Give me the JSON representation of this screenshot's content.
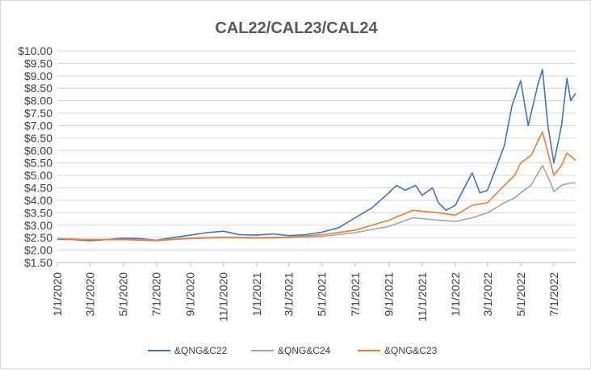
{
  "chart_data": {
    "type": "line",
    "title": "CAL22/CAL23/CAL24",
    "xlabel": "",
    "ylabel": "",
    "x_ticks": [
      "1/1/2020",
      "3/1/2020",
      "5/1/2020",
      "7/1/2020",
      "9/1/2020",
      "11/1/2020",
      "1/1/2021",
      "3/1/2021",
      "5/1/2021",
      "7/1/2021",
      "9/1/2021",
      "11/1/2021",
      "1/1/2022",
      "3/1/2022",
      "5/1/2022",
      "7/1/2022"
    ],
    "y_ticks": [
      "$1.50",
      "$2.00",
      "$2.50",
      "$3.00",
      "$3.50",
      "$4.00",
      "$4.50",
      "$5.00",
      "$5.50",
      "$6.00",
      "$6.50",
      "$7.00",
      "$7.50",
      "$8.00",
      "$8.50",
      "$9.00",
      "$9.50",
      "$10.00"
    ],
    "xlim": [
      "2020-01-01",
      "2022-08-10"
    ],
    "ylim": [
      1.5,
      10.0
    ],
    "grid": "horizontal",
    "legend": "bottom",
    "series": [
      {
        "name": "&QNG&C22",
        "color": "#4472c4",
        "points": [
          [
            "2020-01-01",
            2.43
          ],
          [
            "2020-02-01",
            2.42
          ],
          [
            "2020-03-01",
            2.38
          ],
          [
            "2020-04-01",
            2.42
          ],
          [
            "2020-05-01",
            2.48
          ],
          [
            "2020-06-01",
            2.46
          ],
          [
            "2020-07-01",
            2.4
          ],
          [
            "2020-08-01",
            2.5
          ],
          [
            "2020-09-01",
            2.6
          ],
          [
            "2020-10-01",
            2.7
          ],
          [
            "2020-11-01",
            2.76
          ],
          [
            "2020-12-01",
            2.62
          ],
          [
            "2021-01-01",
            2.6
          ],
          [
            "2021-02-01",
            2.65
          ],
          [
            "2021-03-01",
            2.58
          ],
          [
            "2021-04-01",
            2.62
          ],
          [
            "2021-05-01",
            2.72
          ],
          [
            "2021-06-01",
            2.9
          ],
          [
            "2021-07-01",
            3.3
          ],
          [
            "2021-08-01",
            3.7
          ],
          [
            "2021-09-01",
            4.3
          ],
          [
            "2021-09-15",
            4.6
          ],
          [
            "2021-10-01",
            4.4
          ],
          [
            "2021-10-20",
            4.6
          ],
          [
            "2021-11-01",
            4.2
          ],
          [
            "2021-11-20",
            4.5
          ],
          [
            "2021-12-01",
            3.9
          ],
          [
            "2021-12-15",
            3.6
          ],
          [
            "2022-01-01",
            3.8
          ],
          [
            "2022-01-15",
            4.4
          ],
          [
            "2022-02-01",
            5.1
          ],
          [
            "2022-02-15",
            4.3
          ],
          [
            "2022-03-01",
            4.4
          ],
          [
            "2022-03-15",
            5.2
          ],
          [
            "2022-04-01",
            6.2
          ],
          [
            "2022-04-15",
            7.8
          ],
          [
            "2022-05-01",
            8.8
          ],
          [
            "2022-05-15",
            7.0
          ],
          [
            "2022-06-01",
            8.6
          ],
          [
            "2022-06-10",
            9.25
          ],
          [
            "2022-06-20",
            7.0
          ],
          [
            "2022-07-01",
            5.5
          ],
          [
            "2022-07-15",
            7.0
          ],
          [
            "2022-07-25",
            8.9
          ],
          [
            "2022-08-01",
            8.0
          ],
          [
            "2022-08-10",
            8.3
          ]
        ]
      },
      {
        "name": "&QNG&C24",
        "color": "#a5a5a5",
        "points": [
          [
            "2020-01-01",
            2.46
          ],
          [
            "2020-03-01",
            2.42
          ],
          [
            "2020-05-01",
            2.42
          ],
          [
            "2020-07-01",
            2.4
          ],
          [
            "2020-09-01",
            2.46
          ],
          [
            "2020-11-01",
            2.5
          ],
          [
            "2021-01-01",
            2.48
          ],
          [
            "2021-03-01",
            2.5
          ],
          [
            "2021-05-01",
            2.55
          ],
          [
            "2021-07-01",
            2.7
          ],
          [
            "2021-09-01",
            2.95
          ],
          [
            "2021-10-15",
            3.3
          ],
          [
            "2021-12-01",
            3.2
          ],
          [
            "2022-01-01",
            3.15
          ],
          [
            "2022-02-01",
            3.3
          ],
          [
            "2022-03-01",
            3.5
          ],
          [
            "2022-04-01",
            3.9
          ],
          [
            "2022-04-20",
            4.1
          ],
          [
            "2022-05-01",
            4.3
          ],
          [
            "2022-05-20",
            4.6
          ],
          [
            "2022-06-10",
            5.4
          ],
          [
            "2022-06-25",
            4.7
          ],
          [
            "2022-07-01",
            4.35
          ],
          [
            "2022-07-15",
            4.6
          ],
          [
            "2022-08-01",
            4.7
          ],
          [
            "2022-08-10",
            4.7
          ]
        ]
      },
      {
        "name": "&QNG&C23",
        "color": "#ed7d31",
        "points": [
          [
            "2020-01-01",
            2.45
          ],
          [
            "2020-03-01",
            2.42
          ],
          [
            "2020-05-01",
            2.42
          ],
          [
            "2020-07-01",
            2.38
          ],
          [
            "2020-09-01",
            2.48
          ],
          [
            "2020-11-01",
            2.52
          ],
          [
            "2021-01-01",
            2.5
          ],
          [
            "2021-03-01",
            2.52
          ],
          [
            "2021-05-01",
            2.62
          ],
          [
            "2021-07-01",
            2.8
          ],
          [
            "2021-09-01",
            3.2
          ],
          [
            "2021-10-15",
            3.6
          ],
          [
            "2021-12-01",
            3.5
          ],
          [
            "2022-01-01",
            3.4
          ],
          [
            "2022-02-01",
            3.8
          ],
          [
            "2022-03-01",
            3.9
          ],
          [
            "2022-04-01",
            4.6
          ],
          [
            "2022-04-20",
            5.0
          ],
          [
            "2022-05-01",
            5.5
          ],
          [
            "2022-05-20",
            5.8
          ],
          [
            "2022-06-10",
            6.75
          ],
          [
            "2022-06-25",
            5.5
          ],
          [
            "2022-07-01",
            5.0
          ],
          [
            "2022-07-15",
            5.4
          ],
          [
            "2022-07-25",
            5.9
          ],
          [
            "2022-08-10",
            5.6
          ]
        ]
      }
    ]
  }
}
